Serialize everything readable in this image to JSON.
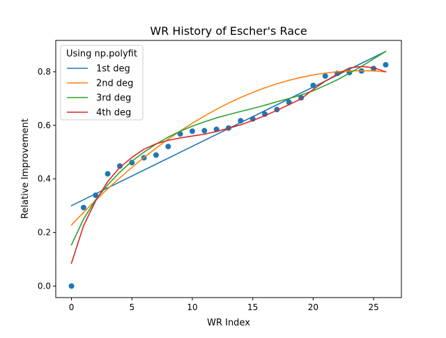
{
  "chart_data": {
    "type": "scatter",
    "title": "WR History of Escher's Race",
    "xlabel": "WR Index",
    "ylabel": "Relative Improvement",
    "xlim": [
      -1.3,
      27.3
    ],
    "ylim": [
      -0.043,
      0.917
    ],
    "xticks": [
      0,
      5,
      10,
      15,
      20,
      25
    ],
    "yticks": [
      0.0,
      0.2,
      0.4,
      0.6,
      0.8
    ],
    "xtick_labels": [
      "0",
      "5",
      "10",
      "15",
      "20",
      "25"
    ],
    "ytick_labels": [
      "0.0",
      "0.2",
      "0.4",
      "0.6",
      "0.8"
    ],
    "grid": false,
    "legend": {
      "title": "Using np.polyfit",
      "placement": "top-left"
    },
    "points": {
      "color": "#1f77b4",
      "x": [
        0,
        1,
        2,
        3,
        4,
        5,
        6,
        7,
        8,
        9,
        10,
        11,
        12,
        13,
        14,
        15,
        16,
        17,
        18,
        19,
        20,
        21,
        22,
        23,
        24,
        25,
        26
      ],
      "y": [
        0.0,
        0.293,
        0.339,
        0.419,
        0.448,
        0.461,
        0.479,
        0.489,
        0.521,
        0.568,
        0.578,
        0.58,
        0.585,
        0.59,
        0.617,
        0.624,
        0.642,
        0.659,
        0.686,
        0.703,
        0.749,
        0.784,
        0.794,
        0.797,
        0.803,
        0.812,
        0.826
      ]
    },
    "series": [
      {
        "name": "1st deg",
        "color": "#1f77b4",
        "x": [
          0,
          26
        ],
        "y": [
          0.3,
          0.876
        ]
      },
      {
        "name": "2nd deg",
        "color": "#ff7f0e",
        "x": [
          0,
          1,
          2,
          3,
          4,
          5,
          6,
          7,
          8,
          9,
          10,
          11,
          12,
          13,
          14,
          15,
          16,
          17,
          18,
          19,
          20,
          21,
          22,
          23,
          24,
          25,
          26
        ],
        "y": [
          0.228,
          0.275,
          0.32,
          0.363,
          0.404,
          0.443,
          0.48,
          0.515,
          0.548,
          0.579,
          0.608,
          0.635,
          0.66,
          0.683,
          0.704,
          0.723,
          0.74,
          0.755,
          0.768,
          0.779,
          0.788,
          0.795,
          0.8,
          0.803,
          0.804,
          0.803,
          0.8
        ]
      },
      {
        "name": "3rd deg",
        "color": "#2ca02c",
        "x": [
          0,
          1,
          2,
          3,
          4,
          5,
          6,
          7,
          8,
          9,
          10,
          11,
          12,
          13,
          14,
          15,
          16,
          17,
          18,
          19,
          20,
          21,
          22,
          23,
          24,
          25,
          26
        ],
        "y": [
          0.154,
          0.25,
          0.322,
          0.378,
          0.425,
          0.466,
          0.5,
          0.53,
          0.556,
          0.578,
          0.597,
          0.613,
          0.628,
          0.64,
          0.652,
          0.663,
          0.675,
          0.688,
          0.7,
          0.713,
          0.729,
          0.749,
          0.77,
          0.795,
          0.82,
          0.848,
          0.876
        ]
      },
      {
        "name": "4th deg",
        "color": "#d62728",
        "x": [
          0,
          1,
          2,
          3,
          4,
          5,
          6,
          7,
          8,
          9,
          10,
          11,
          12,
          13,
          14,
          15,
          16,
          17,
          18,
          19,
          20,
          21,
          22,
          23,
          24,
          25,
          26
        ],
        "y": [
          0.085,
          0.225,
          0.318,
          0.39,
          0.443,
          0.48,
          0.511,
          0.531,
          0.544,
          0.553,
          0.56,
          0.567,
          0.577,
          0.589,
          0.602,
          0.618,
          0.636,
          0.656,
          0.677,
          0.699,
          0.734,
          0.765,
          0.791,
          0.814,
          0.82,
          0.815,
          0.8
        ]
      }
    ]
  }
}
